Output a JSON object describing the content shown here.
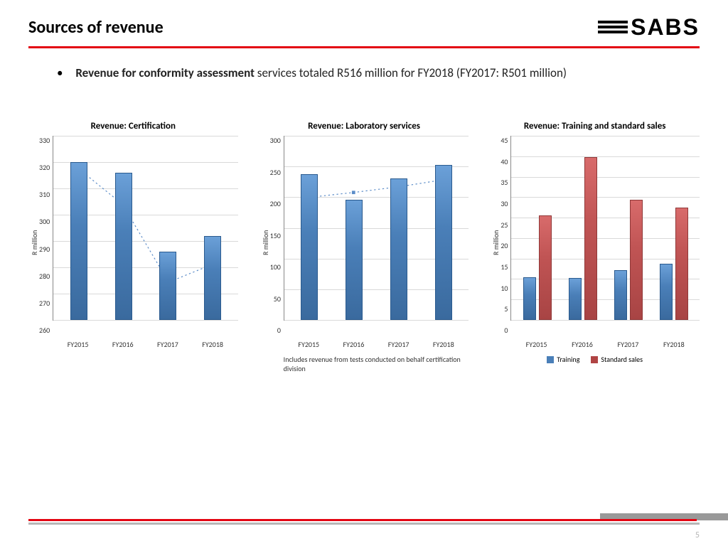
{
  "header": {
    "title": "Sources of revenue",
    "logo_text": "SABS"
  },
  "bullet": {
    "strong": "Revenue for conformity assessment",
    "rest": " services totaled R516 million for FY2018 (FY2017: R501 million)"
  },
  "charts": {
    "cert": {
      "type": "bar",
      "title": "Revenue: Certification",
      "ylabel": "R million",
      "ylim": [
        260,
        330
      ],
      "ytick_step": 10,
      "categories": [
        "FY2015",
        "FY2016",
        "FY2017",
        "FY2018"
      ],
      "values": [
        320,
        316,
        286,
        292
      ],
      "bar_color": "#4a7fb8",
      "trend": [
        320,
        308,
        283,
        289
      ],
      "trend_color": "#5b8cc8",
      "grid_color": "#d9d9d9"
    },
    "lab": {
      "type": "bar",
      "title": "Revenue:  Laboratory services",
      "ylabel": "R million",
      "ylim": [
        0,
        300
      ],
      "ytick_step": 50,
      "categories": [
        "FY2015",
        "FY2016",
        "FY2017",
        "FY2018"
      ],
      "values": [
        238,
        196,
        230,
        252
      ],
      "bar_color": "#4a7fb8",
      "trend": [
        215,
        222,
        230,
        240
      ],
      "trend_color": "#5b8cc8",
      "grid_color": "#d9d9d9",
      "caption": "Includes revenue from tests conducted on behalf certification division"
    },
    "train": {
      "type": "grouped-bar",
      "title": "Revenue: Training and standard sales",
      "ylabel": "R million",
      "ylim": [
        0,
        45
      ],
      "ytick_step": 5,
      "categories": [
        "FY2015",
        "FY2016",
        "FY2017",
        "FY2018"
      ],
      "series": [
        {
          "name": "Training",
          "color": "#4a7fb8",
          "values": [
            10.5,
            10.3,
            12.2,
            13.8
          ]
        },
        {
          "name": "Standard sales",
          "color": "#b04444",
          "values": [
            25.5,
            39.8,
            29.3,
            27.5
          ]
        }
      ],
      "grid_color": "#d9d9d9"
    }
  },
  "page_number": "5"
}
